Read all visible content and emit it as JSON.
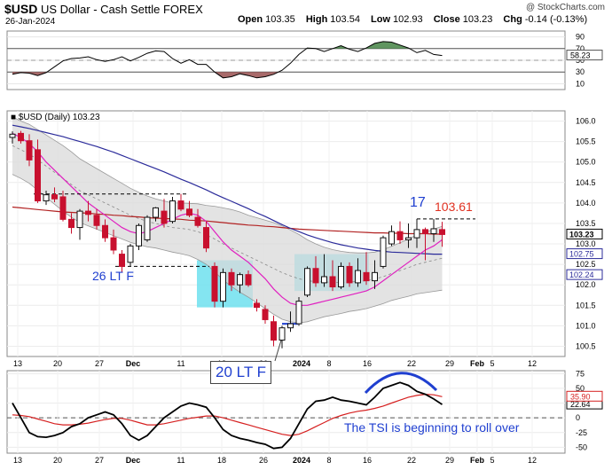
{
  "header": {
    "title_symbol": "$USD",
    "title_rest": "US Dollar - Cash Settle FOREX",
    "date": "26-Jan-2024",
    "brand": "@ StockCharts.com",
    "ohlc": [
      {
        "k": "Open",
        "v": "103.35"
      },
      {
        "k": "High",
        "v": "103.54"
      },
      {
        "k": "Low",
        "v": "102.93"
      },
      {
        "k": "Close",
        "v": "103.23"
      },
      {
        "k": "Chg",
        "v": "-0.14 (-0.13%)"
      }
    ]
  },
  "colors": {
    "up": "#111111",
    "down": "#c8102e",
    "ma_long": "#2b2b9a",
    "ma_red": "#b22222",
    "ma_mid": "#e020c0",
    "band_fill": "#dadada",
    "highlight": "#6ee0ee",
    "annot_blue": "#1f3fd0",
    "annot_red": "#e03020",
    "rsi_fill_up": "#4f8a4f",
    "rsi_fill_dn": "#9e5a5a"
  },
  "chart_data": [
    {
      "type": "line",
      "panel": "RSI",
      "ylim": [
        0,
        100
      ],
      "ticks": [
        90,
        70,
        50,
        30,
        10
      ],
      "ref_lines": [
        70,
        30
      ],
      "last_value_label": "58.23",
      "values": [
        26,
        29,
        28,
        24,
        29,
        39,
        49,
        53,
        54,
        56,
        51,
        48,
        51,
        56,
        49,
        55,
        62,
        66,
        65,
        53,
        45,
        51,
        43,
        43,
        30,
        20,
        22,
        27,
        24,
        20,
        22,
        26,
        33,
        45,
        60,
        71,
        70,
        65,
        70,
        75,
        69,
        65,
        71,
        79,
        82,
        81,
        76,
        71,
        63,
        67,
        60,
        58.23
      ]
    },
    {
      "type": "candlestick",
      "panel": "Price",
      "label": "$USD (Daily) 103.23",
      "ylim": [
        100.25,
        106.25
      ],
      "ticks": [
        "106.0",
        "105.5",
        "105.0",
        "104.5",
        "104.0",
        "103.5",
        "103.0",
        "102.5",
        "102.0",
        "101.5",
        "101.0",
        "100.5"
      ],
      "x_labels": [
        "13",
        "20",
        "27",
        "Dec",
        "11",
        "18",
        "26",
        "2024",
        "8",
        "16",
        "22",
        "29",
        "Feb",
        "5",
        "12"
      ],
      "candles": [
        {
          "o": 105.6,
          "h": 105.75,
          "l": 105.45,
          "c": 105.68
        },
        {
          "o": 105.7,
          "h": 105.76,
          "l": 105.45,
          "c": 105.52
        },
        {
          "o": 105.52,
          "h": 105.68,
          "l": 104.9,
          "c": 105.05
        },
        {
          "o": 105.3,
          "h": 105.55,
          "l": 104.0,
          "c": 104.05
        },
        {
          "o": 104.05,
          "h": 104.3,
          "l": 103.95,
          "c": 104.2
        },
        {
          "o": 104.2,
          "h": 104.38,
          "l": 104.02,
          "c": 104.1
        },
        {
          "o": 104.15,
          "h": 104.3,
          "l": 103.55,
          "c": 103.6
        },
        {
          "o": 103.6,
          "h": 103.75,
          "l": 103.25,
          "c": 103.4
        },
        {
          "o": 103.4,
          "h": 103.85,
          "l": 103.1,
          "c": 103.8
        },
        {
          "o": 103.8,
          "h": 104.05,
          "l": 103.55,
          "c": 103.72
        },
        {
          "o": 103.7,
          "h": 103.85,
          "l": 103.35,
          "c": 103.45
        },
        {
          "o": 103.45,
          "h": 103.6,
          "l": 103.05,
          "c": 103.15
        },
        {
          "o": 103.15,
          "h": 103.35,
          "l": 102.75,
          "c": 102.85
        },
        {
          "o": 102.75,
          "h": 102.85,
          "l": 102.3,
          "c": 102.45
        },
        {
          "o": 102.55,
          "h": 103.0,
          "l": 102.45,
          "c": 102.95
        },
        {
          "o": 102.95,
          "h": 103.5,
          "l": 102.85,
          "c": 103.45
        },
        {
          "o": 103.1,
          "h": 103.7,
          "l": 103.05,
          "c": 103.65
        },
        {
          "o": 103.65,
          "h": 103.9,
          "l": 103.55,
          "c": 103.88
        },
        {
          "o": 103.8,
          "h": 104.1,
          "l": 103.4,
          "c": 103.5
        },
        {
          "o": 103.55,
          "h": 104.15,
          "l": 103.5,
          "c": 104.05
        },
        {
          "o": 104.05,
          "h": 104.22,
          "l": 103.8,
          "c": 103.85
        },
        {
          "o": 103.85,
          "h": 104.05,
          "l": 103.65,
          "c": 103.7
        },
        {
          "o": 103.65,
          "h": 103.85,
          "l": 103.4,
          "c": 103.45
        },
        {
          "o": 103.4,
          "h": 103.55,
          "l": 102.8,
          "c": 102.9
        },
        {
          "o": 102.45,
          "h": 102.55,
          "l": 101.45,
          "c": 101.6
        },
        {
          "o": 101.6,
          "h": 102.4,
          "l": 101.45,
          "c": 102.3
        },
        {
          "o": 102.3,
          "h": 102.4,
          "l": 101.85,
          "c": 102.0
        },
        {
          "o": 102.0,
          "h": 102.3,
          "l": 101.8,
          "c": 102.25
        },
        {
          "o": 102.25,
          "h": 102.35,
          "l": 101.95,
          "c": 102.0
        },
        {
          "o": 101.55,
          "h": 101.65,
          "l": 101.35,
          "c": 101.45
        },
        {
          "o": 101.4,
          "h": 101.5,
          "l": 101.05,
          "c": 101.15
        },
        {
          "o": 101.1,
          "h": 101.25,
          "l": 100.5,
          "c": 100.65
        },
        {
          "o": 100.65,
          "h": 101.0,
          "l": 100.45,
          "c": 100.95
        },
        {
          "o": 100.95,
          "h": 101.35,
          "l": 100.85,
          "c": 101.05
        },
        {
          "o": 101.05,
          "h": 101.7,
          "l": 101.0,
          "c": 101.6
        },
        {
          "o": 101.75,
          "h": 102.45,
          "l": 101.7,
          "c": 102.4
        },
        {
          "o": 102.4,
          "h": 102.7,
          "l": 101.95,
          "c": 102.05
        },
        {
          "o": 102.05,
          "h": 102.75,
          "l": 101.95,
          "c": 102.2
        },
        {
          "o": 102.2,
          "h": 102.6,
          "l": 101.85,
          "c": 101.95
        },
        {
          "o": 101.95,
          "h": 102.55,
          "l": 101.9,
          "c": 102.45
        },
        {
          "o": 102.45,
          "h": 102.55,
          "l": 101.95,
          "c": 102.05
        },
        {
          "o": 102.05,
          "h": 102.65,
          "l": 101.95,
          "c": 102.35
        },
        {
          "o": 102.3,
          "h": 102.8,
          "l": 102.0,
          "c": 102.1
        },
        {
          "o": 102.1,
          "h": 102.6,
          "l": 101.9,
          "c": 102.3
        },
        {
          "o": 102.45,
          "h": 103.2,
          "l": 102.4,
          "c": 103.15
        },
        {
          "o": 103.0,
          "h": 103.45,
          "l": 102.95,
          "c": 103.3
        },
        {
          "o": 103.3,
          "h": 103.55,
          "l": 103.0,
          "c": 103.1
        },
        {
          "o": 103.1,
          "h": 103.5,
          "l": 102.9,
          "c": 103.15
        },
        {
          "o": 103.15,
          "h": 103.6,
          "l": 102.9,
          "c": 103.35
        },
        {
          "o": 103.35,
          "h": 103.4,
          "l": 102.6,
          "c": 103.25
        },
        {
          "o": 103.25,
          "h": 103.61,
          "l": 103.05,
          "c": 103.37
        },
        {
          "o": 103.35,
          "h": 103.54,
          "l": 102.93,
          "c": 103.23
        }
      ],
      "ma_red": [
        103.9,
        103.88,
        103.86,
        103.84,
        103.82,
        103.8,
        103.78,
        103.77,
        103.76,
        103.75,
        103.73,
        103.72,
        103.7,
        103.69,
        103.67,
        103.66,
        103.64,
        103.63,
        103.62,
        103.61,
        103.6,
        103.58,
        103.57,
        103.56,
        103.54,
        103.52,
        103.5,
        103.48,
        103.46,
        103.45,
        103.43,
        103.42,
        103.4,
        103.38,
        103.36,
        103.35,
        103.34,
        103.33,
        103.32,
        103.31,
        103.3,
        103.29,
        103.28,
        103.27,
        103.27,
        103.26,
        103.26,
        103.25,
        103.25,
        103.25,
        103.24,
        103.24
      ],
      "ma_long": [
        105.9,
        105.86,
        105.82,
        105.77,
        105.72,
        105.67,
        105.62,
        105.56,
        105.5,
        105.44,
        105.38,
        105.31,
        105.24,
        105.16,
        105.08,
        105.0,
        104.92,
        104.84,
        104.76,
        104.67,
        104.58,
        104.5,
        104.41,
        104.32,
        104.22,
        104.13,
        104.04,
        103.95,
        103.86,
        103.76,
        103.67,
        103.57,
        103.47,
        103.38,
        103.3,
        103.22,
        103.15,
        103.09,
        103.03,
        102.98,
        102.94,
        102.9,
        102.87,
        102.84,
        102.82,
        102.8,
        102.79,
        102.78,
        102.77,
        102.76,
        102.75,
        102.75
      ],
      "ma_mid": [
        105.7,
        105.6,
        105.45,
        105.25,
        105.0,
        104.8,
        104.6,
        104.4,
        104.2,
        104.0,
        103.85,
        103.7,
        103.55,
        103.4,
        103.3,
        103.25,
        103.3,
        103.4,
        103.5,
        103.6,
        103.7,
        103.75,
        103.7,
        103.55,
        103.3,
        103.05,
        102.85,
        102.7,
        102.55,
        102.35,
        102.15,
        101.9,
        101.7,
        101.55,
        101.5,
        101.5,
        101.55,
        101.6,
        101.65,
        101.7,
        101.75,
        101.8,
        101.85,
        101.95,
        102.1,
        102.25,
        102.4,
        102.55,
        102.7,
        102.85,
        102.95,
        103.1
      ],
      "bb_mid": [
        105.4,
        105.3,
        105.2,
        105.05,
        104.9,
        104.75,
        104.6,
        104.45,
        104.3,
        104.2,
        104.1,
        104.0,
        103.9,
        103.8,
        103.7,
        103.62,
        103.55,
        103.5,
        103.45,
        103.4,
        103.38,
        103.35,
        103.3,
        103.22,
        103.12,
        103.0,
        102.9,
        102.8,
        102.7,
        102.6,
        102.5,
        102.4,
        102.3,
        102.22,
        102.15,
        102.1,
        102.08,
        102.07,
        102.06,
        102.06,
        102.07,
        102.08,
        102.1,
        102.14,
        102.2,
        102.28,
        102.35,
        102.42,
        102.5,
        102.55,
        102.6,
        102.65
      ],
      "bb_width": [
        0.7,
        0.7,
        0.72,
        0.74,
        0.76,
        0.78,
        0.8,
        0.8,
        0.78,
        0.76,
        0.74,
        0.72,
        0.7,
        0.68,
        0.66,
        0.64,
        0.62,
        0.6,
        0.6,
        0.6,
        0.62,
        0.64,
        0.68,
        0.72,
        0.8,
        0.88,
        0.94,
        0.98,
        1.0,
        1.04,
        1.08,
        1.12,
        1.14,
        1.12,
        1.08,
        1.0,
        0.92,
        0.85,
        0.8,
        0.76,
        0.72,
        0.7,
        0.68,
        0.66,
        0.66,
        0.66,
        0.68,
        0.7,
        0.72,
        0.74,
        0.76,
        0.78
      ],
      "overlay_labels": [
        {
          "text": "103.23",
          "value": 103.23,
          "color": "#000000",
          "bold": true
        },
        {
          "text": "102.75",
          "value": 102.75,
          "color": "#2b2b9a"
        },
        {
          "text": "102.24",
          "value": 102.24,
          "color": "#2b2b9a"
        }
      ]
    },
    {
      "type": "line",
      "panel": "TSI",
      "ylim": [
        -60,
        80
      ],
      "ticks": [
        75,
        50,
        25,
        0,
        -25,
        -50
      ],
      "x_labels": [
        "13",
        "20",
        "27",
        "Dec",
        "11",
        "18",
        "26",
        "2024",
        "8",
        "16",
        "22",
        "29",
        "Feb",
        "5",
        "12"
      ],
      "series": [
        {
          "values": [
            25,
            0,
            -25,
            -32,
            -33,
            -30,
            -25,
            -15,
            -10,
            0,
            5,
            10,
            5,
            -10,
            -30,
            -38,
            -30,
            -15,
            0,
            10,
            20,
            25,
            22,
            18,
            0,
            -20,
            -30,
            -35,
            -38,
            -42,
            -45,
            -52,
            -50,
            -35,
            -10,
            15,
            28,
            30,
            35,
            30,
            28,
            25,
            22,
            35,
            50,
            55,
            60,
            55,
            45,
            40,
            32,
            22.64
          ],
          "color": "#000000",
          "last_label": "22.64"
        },
        {
          "values": [
            5,
            4,
            2,
            -2,
            -6,
            -10,
            -12,
            -12,
            -11,
            -9,
            -6,
            -3,
            -1,
            -1,
            -4,
            -8,
            -12,
            -12,
            -10,
            -7,
            -4,
            -1,
            1,
            3,
            3,
            0,
            -4,
            -8,
            -12,
            -16,
            -20,
            -24,
            -28,
            -30,
            -28,
            -22,
            -15,
            -8,
            -1,
            4,
            8,
            11,
            13,
            16,
            20,
            25,
            30,
            35,
            38,
            40,
            39,
            35.9
          ],
          "color": "#d62020",
          "last_label": "35.90"
        }
      ]
    }
  ],
  "annotations": {
    "label_26": "26 LT F",
    "label_20": "20 LT F",
    "label_17": "17",
    "label_high": "103.61",
    "tsi_note": "The TSI is beginning to roll over"
  }
}
